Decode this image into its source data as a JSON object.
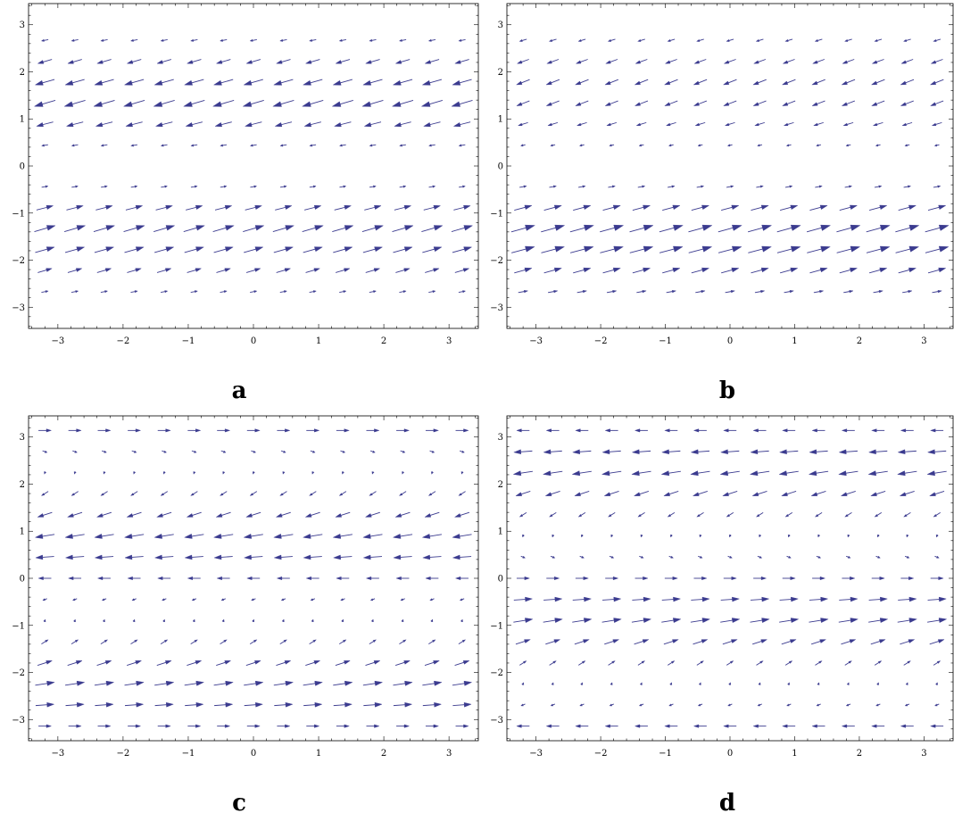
{
  "chart_data": [
    {
      "type": "vector-field",
      "panel_label": "a",
      "xlim": [
        -3.45,
        3.45
      ],
      "ylim": [
        -3.45,
        3.45
      ],
      "xticks": [
        -3,
        -2,
        -1,
        0,
        1,
        2,
        3
      ],
      "yticks": [
        -3,
        -2,
        -1,
        0,
        1,
        2,
        3
      ],
      "x_samples": [
        -3.2,
        -2.74,
        -2.29,
        -1.83,
        -1.37,
        -0.91,
        -0.46,
        0,
        0.46,
        0.91,
        1.37,
        1.83,
        2.29,
        2.74,
        3.2
      ],
      "rows": [
        {
          "y": 2.67,
          "dx": -0.32,
          "dy": -0.06
        },
        {
          "y": 2.22,
          "dx": -0.66,
          "dy": -0.19
        },
        {
          "y": 1.78,
          "dx": -0.9,
          "dy": -0.25
        },
        {
          "y": 1.33,
          "dx": -0.98,
          "dy": -0.28
        },
        {
          "y": 0.89,
          "dx": -0.78,
          "dy": -0.2
        },
        {
          "y": 0.44,
          "dx": -0.3,
          "dy": -0.05
        },
        {
          "y": -0.44,
          "dx": 0.3,
          "dy": 0.05
        },
        {
          "y": -0.89,
          "dx": 0.78,
          "dy": 0.2
        },
        {
          "y": -1.33,
          "dx": 0.98,
          "dy": 0.28
        },
        {
          "y": -1.78,
          "dx": 0.9,
          "dy": 0.25
        },
        {
          "y": -2.22,
          "dx": 0.66,
          "dy": 0.19
        },
        {
          "y": -2.67,
          "dx": 0.32,
          "dy": 0.06
        }
      ],
      "arrow_color": "#3b3b8f",
      "frame": true
    },
    {
      "type": "vector-field",
      "panel_label": "b",
      "xlim": [
        -3.45,
        3.45
      ],
      "ylim": [
        -3.45,
        3.45
      ],
      "xticks": [
        -3,
        -2,
        -1,
        0,
        1,
        2,
        3
      ],
      "yticks": [
        -3,
        -2,
        -1,
        0,
        1,
        2,
        3
      ],
      "x_samples": [
        -3.2,
        -2.74,
        -2.29,
        -1.83,
        -1.37,
        -0.91,
        -0.46,
        0,
        0.46,
        0.91,
        1.37,
        1.83,
        2.29,
        2.74,
        3.2
      ],
      "rows": [
        {
          "y": 2.67,
          "dx": -0.34,
          "dy": -0.1
        },
        {
          "y": 2.22,
          "dx": -0.55,
          "dy": -0.2
        },
        {
          "y": 1.78,
          "dx": -0.62,
          "dy": -0.24
        },
        {
          "y": 1.33,
          "dx": -0.6,
          "dy": -0.23
        },
        {
          "y": 0.89,
          "dx": -0.46,
          "dy": -0.14
        },
        {
          "y": 0.44,
          "dx": -0.22,
          "dy": -0.05
        },
        {
          "y": -0.44,
          "dx": 0.33,
          "dy": 0.06
        },
        {
          "y": -0.89,
          "dx": 0.82,
          "dy": 0.22
        },
        {
          "y": -1.33,
          "dx": 1.1,
          "dy": 0.3
        },
        {
          "y": -1.78,
          "dx": 1.08,
          "dy": 0.28
        },
        {
          "y": -2.22,
          "dx": 0.82,
          "dy": 0.22
        },
        {
          "y": -2.67,
          "dx": 0.45,
          "dy": 0.08
        }
      ],
      "arrow_color": "#3b3b8f",
      "frame": true
    },
    {
      "type": "vector-field",
      "panel_label": "c",
      "xlim": [
        -3.45,
        3.45
      ],
      "ylim": [
        -3.45,
        3.45
      ],
      "xticks": [
        -3,
        -2,
        -1,
        0,
        1,
        2,
        3
      ],
      "yticks": [
        -3,
        -2,
        -1,
        0,
        1,
        2,
        3
      ],
      "x_samples": [
        -3.2,
        -2.74,
        -2.29,
        -1.83,
        -1.37,
        -0.91,
        -0.46,
        0,
        0.46,
        0.91,
        1.37,
        1.83,
        2.29,
        2.74,
        3.2
      ],
      "rows": [
        {
          "y": 3.14,
          "dx": 0.6,
          "dy": 0
        },
        {
          "y": 2.69,
          "dx": 0.22,
          "dy": -0.08
        },
        {
          "y": 2.24,
          "dx": -0.04,
          "dy": -0.12
        },
        {
          "y": 1.8,
          "dx": -0.32,
          "dy": -0.2
        },
        {
          "y": 1.35,
          "dx": -0.68,
          "dy": -0.22
        },
        {
          "y": 0.9,
          "dx": -0.9,
          "dy": -0.14
        },
        {
          "y": 0.45,
          "dx": -0.86,
          "dy": -0.06
        },
        {
          "y": 0,
          "dx": -0.6,
          "dy": 0
        },
        {
          "y": -0.45,
          "dx": -0.2,
          "dy": -0.08
        },
        {
          "y": -0.9,
          "dx": 0.04,
          "dy": 0.12
        },
        {
          "y": -1.35,
          "dx": 0.32,
          "dy": 0.2
        },
        {
          "y": -1.8,
          "dx": 0.68,
          "dy": 0.22
        },
        {
          "y": -2.24,
          "dx": 0.9,
          "dy": 0.14
        },
        {
          "y": -2.69,
          "dx": 0.86,
          "dy": 0.06
        },
        {
          "y": -3.14,
          "dx": 0.6,
          "dy": 0
        }
      ],
      "arrow_color": "#3b3b8f",
      "frame": true
    },
    {
      "type": "vector-field",
      "panel_label": "d",
      "xlim": [
        -3.45,
        3.45
      ],
      "ylim": [
        -3.45,
        3.45
      ],
      "xticks": [
        -3,
        -2,
        -1,
        0,
        1,
        2,
        3
      ],
      "yticks": [
        -3,
        -2,
        -1,
        0,
        1,
        2,
        3
      ],
      "x_samples": [
        -3.2,
        -2.74,
        -2.29,
        -1.83,
        -1.37,
        -0.91,
        -0.46,
        0,
        0.46,
        0.91,
        1.37,
        1.83,
        2.29,
        2.74,
        3.2
      ],
      "rows": [
        {
          "y": 3.14,
          "dx": -0.6,
          "dy": 0
        },
        {
          "y": 2.69,
          "dx": -0.86,
          "dy": -0.06
        },
        {
          "y": 2.24,
          "dx": -0.9,
          "dy": -0.14
        },
        {
          "y": 1.8,
          "dx": -0.68,
          "dy": -0.22
        },
        {
          "y": 1.35,
          "dx": -0.32,
          "dy": -0.2
        },
        {
          "y": 0.9,
          "dx": -0.04,
          "dy": -0.12
        },
        {
          "y": 0.45,
          "dx": 0.2,
          "dy": -0.08
        },
        {
          "y": 0,
          "dx": 0.6,
          "dy": 0
        },
        {
          "y": -0.45,
          "dx": 0.86,
          "dy": 0.06
        },
        {
          "y": -0.9,
          "dx": 0.9,
          "dy": 0.14
        },
        {
          "y": -1.35,
          "dx": 0.68,
          "dy": 0.22
        },
        {
          "y": -1.8,
          "dx": 0.32,
          "dy": 0.2
        },
        {
          "y": -2.24,
          "dx": 0.04,
          "dy": 0.12
        },
        {
          "y": -2.69,
          "dx": -0.2,
          "dy": -0.08
        },
        {
          "y": -3.14,
          "dx": -0.6,
          "dy": 0
        }
      ],
      "arrow_color": "#3b3b8f",
      "frame": true
    }
  ]
}
